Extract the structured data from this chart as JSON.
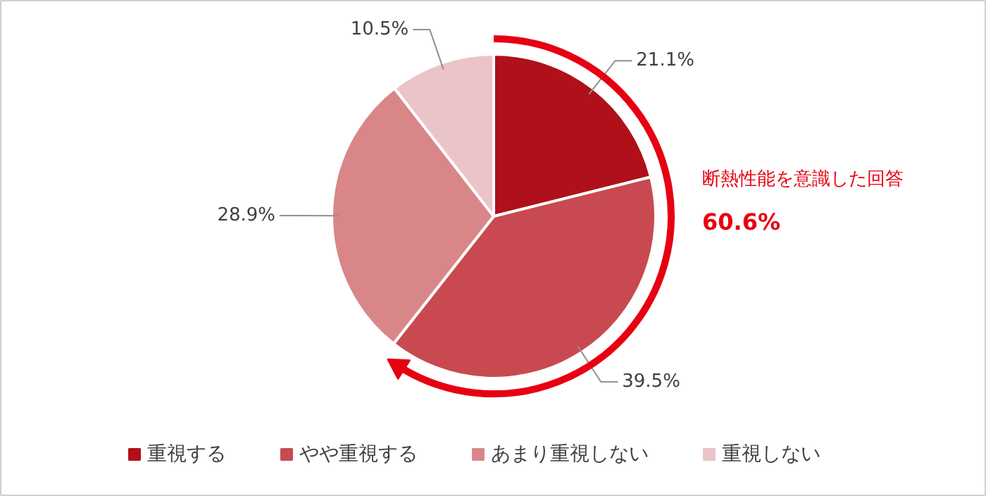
{
  "chart_data": {
    "type": "pie",
    "categories": [
      "重視する",
      "やや重視する",
      "あまり重視しない",
      "重視しない"
    ],
    "values": [
      21.1,
      39.5,
      28.9,
      10.5
    ],
    "colors": [
      "#b0101a",
      "#c84a50",
      "#d98689",
      "#ebc4c7"
    ],
    "value_labels": [
      "21.1%",
      "39.5%",
      "28.9%",
      "10.5%"
    ],
    "annotations": [
      "断熱性能を意識した回答",
      "60.6%"
    ],
    "legend": "bottom"
  }
}
